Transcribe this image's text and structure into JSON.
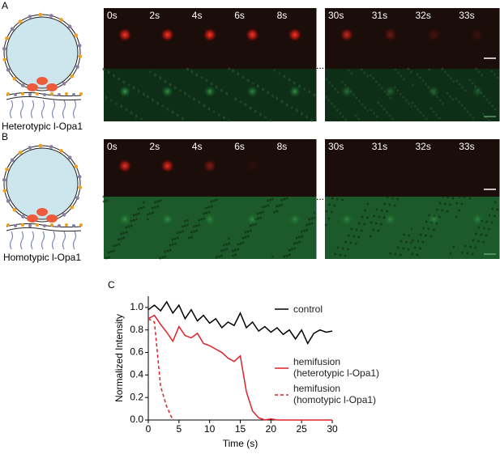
{
  "panels": [
    {
      "label": "A",
      "caption": "Heterotypic l-Opa1",
      "times": [
        "0s",
        "2s",
        "4s",
        "6s",
        "8s",
        "30s",
        "31s",
        "32s",
        "33s"
      ],
      "ellipsis": "..."
    },
    {
      "label": "B",
      "caption": "Homotypic l-Opa1",
      "times": [
        "0s",
        "2s",
        "4s",
        "6s",
        "8s",
        "30s",
        "31s",
        "32s",
        "33s"
      ],
      "ellipsis": "..."
    }
  ],
  "chart_data": {
    "type": "line",
    "label": "C",
    "xlabel": "Time (s)",
    "ylabel": "Normalized Intensity",
    "x": [
      0,
      1,
      2,
      3,
      4,
      5,
      6,
      7,
      8,
      9,
      10,
      11,
      12,
      13,
      14,
      15,
      16,
      17,
      18,
      19,
      20,
      21,
      22,
      23,
      24,
      25,
      26,
      27,
      28,
      29,
      30
    ],
    "series": [
      {
        "name": "control",
        "color": "#000000",
        "dash": false,
        "values": [
          0.98,
          1.02,
          0.97,
          1.05,
          0.95,
          1.02,
          0.9,
          0.98,
          0.88,
          0.93,
          0.86,
          0.9,
          0.82,
          0.87,
          0.84,
          0.95,
          0.82,
          0.87,
          0.79,
          0.83,
          0.78,
          0.82,
          0.76,
          0.8,
          0.72,
          0.8,
          0.68,
          0.77,
          0.8,
          0.78,
          0.79
        ]
      },
      {
        "name": "hemifusion (heterotypic l-Opa1)",
        "color": "#e0202a",
        "dash": false,
        "values": [
          0.9,
          0.93,
          0.85,
          0.78,
          0.7,
          0.83,
          0.75,
          0.73,
          0.77,
          0.68,
          0.66,
          0.63,
          0.6,
          0.55,
          0.52,
          0.57,
          0.25,
          0.08,
          0.02,
          0,
          0.01,
          0,
          0,
          0,
          0,
          0,
          0,
          0,
          0,
          0,
          0
        ]
      },
      {
        "name": "hemifusion (homotypic l-Opa1)",
        "color": "#e0202a",
        "dash": true,
        "values": [
          0.9,
          0.87,
          0.3,
          0.12,
          0,
          null,
          null,
          null,
          null,
          null,
          null,
          null,
          null,
          null,
          null,
          null,
          null,
          null,
          null,
          null,
          null,
          null,
          null,
          null,
          null,
          null,
          null,
          null,
          null,
          null,
          null
        ]
      }
    ],
    "xlim": [
      0,
      30
    ],
    "xticks": [
      0,
      5,
      10,
      15,
      20,
      25,
      30
    ],
    "ylim": [
      0,
      1.1
    ],
    "yticks": [
      {
        "value": 0,
        "label": "0.0"
      },
      0.2,
      0.4,
      0.6,
      0.8,
      {
        "value": 1,
        "label": "1.0"
      }
    ]
  }
}
